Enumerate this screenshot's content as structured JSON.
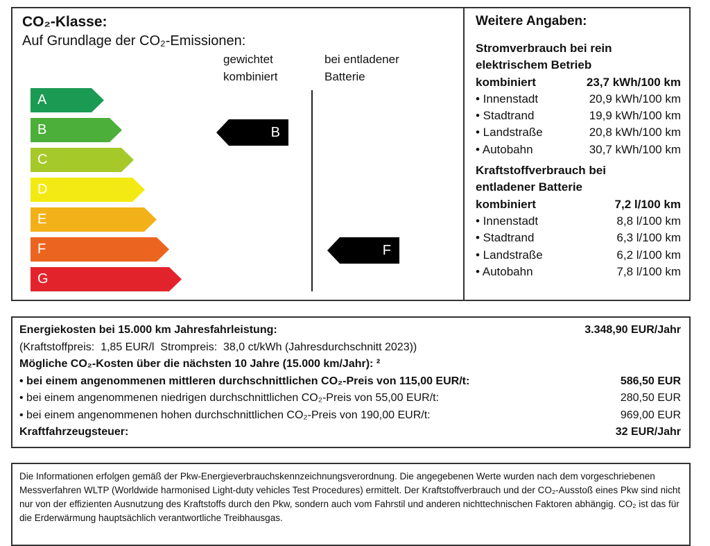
{
  "co2": {
    "title": "CO₂-Klasse:",
    "subtitle": "Auf Grundlage der CO₂-Emissionen:",
    "col1": [
      "gewichtet",
      "kombiniert"
    ],
    "col2": [
      "bei entladener",
      "Batterie"
    ],
    "classes": [
      {
        "label": "A",
        "color": "#1a9a52"
      },
      {
        "label": "B",
        "color": "#4caf3a"
      },
      {
        "label": "C",
        "color": "#a6c92a"
      },
      {
        "label": "D",
        "color": "#f4ea13"
      },
      {
        "label": "E",
        "color": "#f3b119"
      },
      {
        "label": "F",
        "color": "#ec6520"
      },
      {
        "label": "G",
        "color": "#e3232b"
      }
    ],
    "weighted_class": "B",
    "discharged_class": "F"
  },
  "weitere": {
    "title": "Weitere Angaben:",
    "strom_heading": [
      "Stromverbrauch bei rein",
      "elektrischem Betrieb"
    ],
    "strom_rows": [
      {
        "label": "kombiniert",
        "value": "23,7 kWh/100 km"
      },
      {
        "label": "• Innenstadt",
        "value": "20,9 kWh/100 km"
      },
      {
        "label": "• Stadtrand",
        "value": "19,9 kWh/100 km"
      },
      {
        "label": "• Landstraße",
        "value": "20,8 kWh/100 km"
      },
      {
        "label": "• Autobahn",
        "value": "30,7 kWh/100 km"
      }
    ],
    "kraft_heading": [
      "Kraftstoffverbrauch bei",
      "entladener Batterie"
    ],
    "kraft_rows": [
      {
        "label": "kombiniert",
        "value": "7,2 l/100 km"
      },
      {
        "label": "• Innenstadt",
        "value": "8,8 l/100 km"
      },
      {
        "label": "• Stadtrand",
        "value": "6,3 l/100 km"
      },
      {
        "label": "• Landstraße",
        "value": "6,2 l/100 km"
      },
      {
        "label": "• Autobahn",
        "value": "7,8 l/100 km"
      }
    ]
  },
  "kosten": {
    "energie_label": "Energiekosten bei 15.000 km Jahresfahrleistung:",
    "energie_value": "3.348,90 EUR/Jahr",
    "preise": "(Kraftstoffpreis:  1,85 EUR/l  Strompreis:  38,0 ct/kWh (Jahresdurchschnitt 2023))",
    "co2_heading": "Mögliche CO₂-Kosten über die nächsten 10 Jahre (15.000 km/Jahr): ²",
    "co2_rows": [
      {
        "label": "• bei einem angenommenen mittleren durchschnittlichen CO₂-Preis von 115,00 EUR/t:",
        "value": "586,50 EUR",
        "bold": true
      },
      {
        "label": "• bei einem angenommenen niedrigen durchschnittlichen CO₂-Preis von 55,00 EUR/t:",
        "value": "280,50 EUR",
        "bold": false
      },
      {
        "label": "• bei einem angenommenen hohen durchschnittlichen CO₂-Preis von 190,00 EUR/t:",
        "value": "969,00 EUR",
        "bold": false
      }
    ],
    "steuer_label": "Kraftfahrzeugsteuer:",
    "steuer_value": "32 EUR/Jahr"
  },
  "footer": {
    "text": "Die Informationen erfolgen gemäß der Pkw-Energieverbrauchskennzeichnungsverordnung. Die angegebenen Werte wurden nach dem vorgeschriebenen Messverfahren WLTP (Worldwide harmonised Light-duty vehicles Test Procedures) ermittelt. Der Kraftstoffverbrauch und der CO₂-Ausstoß eines Pkw sind nicht nur von der effizienten Ausnutzung des Kraftstoffs durch den Pkw, sondern auch vom Fahrstil und anderen nichttechnischen Faktoren abhängig. CO₂ ist das für die Erderwärmung hauptsächlich verantwortliche Treibhausgas."
  }
}
